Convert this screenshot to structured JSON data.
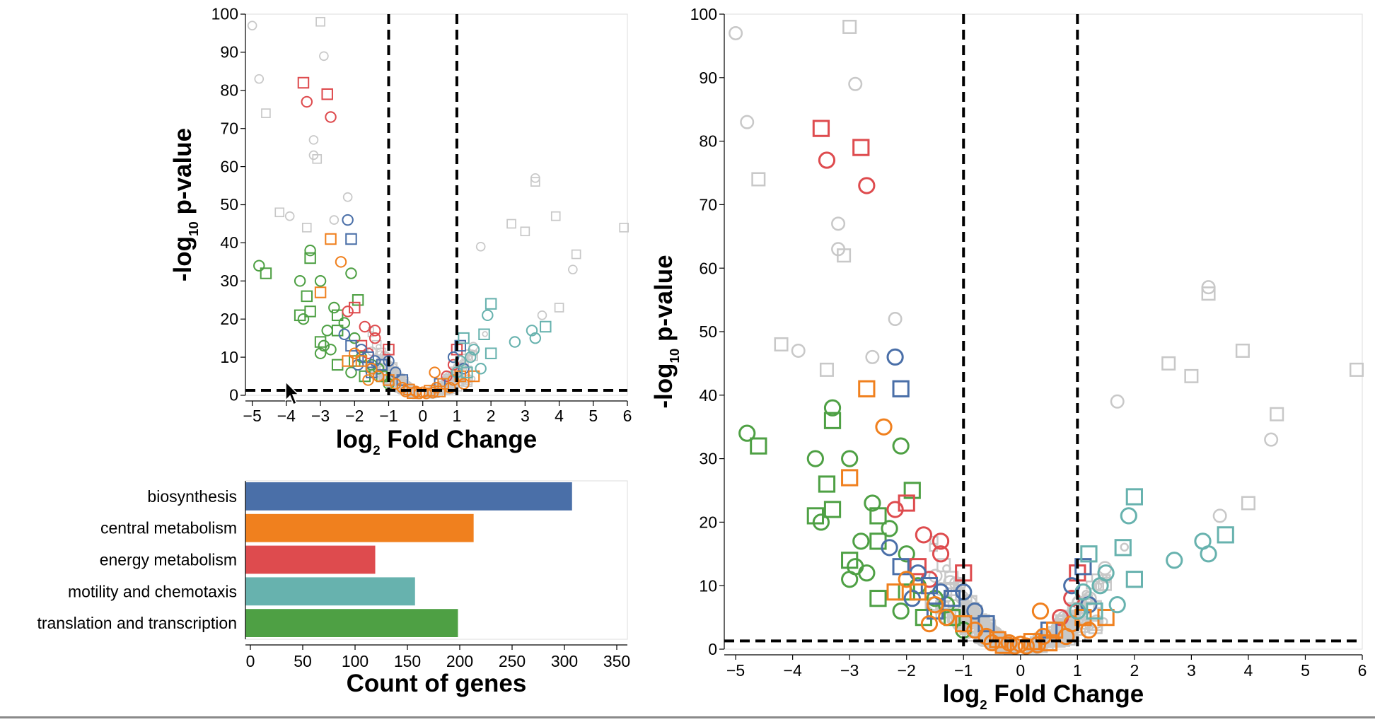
{
  "chart_data": [
    {
      "type": "scatter",
      "subtype": "volcano",
      "title": "",
      "xlabel": {
        "base": "log",
        "sub": "2",
        "rest": " Fold Change"
      },
      "ylabel": {
        "base": "-log",
        "sub": "10",
        "rest": " p-value"
      },
      "xlim": [
        -5.2,
        6
      ],
      "ylim": [
        0,
        100
      ],
      "xticks": [
        -5,
        -4,
        -3,
        -2,
        -1,
        0,
        1,
        2,
        3,
        4,
        5,
        6
      ],
      "xtick_labels": [
        "−5",
        "−4",
        "−3",
        "−2",
        "−1",
        "0",
        "1",
        "2",
        "3",
        "4",
        "5",
        "6"
      ],
      "yticks": [
        0,
        10,
        20,
        30,
        40,
        50,
        60,
        70,
        80,
        90,
        100
      ],
      "grid": false,
      "thresholds": {
        "x": [
          -1,
          1
        ],
        "y": 1.3
      },
      "marker_legend": "circle and square outline markers; color = category, gray = other genes",
      "highlighted_points": [
        {
          "x": -3.5,
          "y": 82,
          "cat": "energy metabolism",
          "shape": "square"
        },
        {
          "x": -3.4,
          "y": 77,
          "cat": "energy metabolism",
          "shape": "circle"
        },
        {
          "x": -2.8,
          "y": 79,
          "cat": "energy metabolism",
          "shape": "square"
        },
        {
          "x": -2.7,
          "y": 73,
          "cat": "energy metabolism",
          "shape": "circle"
        },
        {
          "x": -2.2,
          "y": 46,
          "cat": "biosynthesis",
          "shape": "circle"
        },
        {
          "x": -2.1,
          "y": 41,
          "cat": "biosynthesis",
          "shape": "square"
        },
        {
          "x": -2.7,
          "y": 41,
          "cat": "central metabolism",
          "shape": "square"
        },
        {
          "x": -2.4,
          "y": 35,
          "cat": "central metabolism",
          "shape": "circle"
        },
        {
          "x": -3.0,
          "y": 27,
          "cat": "central metabolism",
          "shape": "square"
        },
        {
          "x": -3.3,
          "y": 38,
          "cat": "translation and transcription",
          "shape": "circle"
        },
        {
          "x": -3.3,
          "y": 36,
          "cat": "translation and transcription",
          "shape": "square"
        },
        {
          "x": -4.8,
          "y": 34,
          "cat": "translation and transcription",
          "shape": "circle"
        },
        {
          "x": -4.6,
          "y": 32,
          "cat": "translation and transcription",
          "shape": "square"
        },
        {
          "x": -3.6,
          "y": 30,
          "cat": "translation and transcription",
          "shape": "circle"
        },
        {
          "x": -3.0,
          "y": 30,
          "cat": "translation and transcription",
          "shape": "circle"
        },
        {
          "x": -2.1,
          "y": 32,
          "cat": "translation and transcription",
          "shape": "circle"
        },
        {
          "x": -3.4,
          "y": 26,
          "cat": "translation and transcription",
          "shape": "square"
        },
        {
          "x": -3.6,
          "y": 21,
          "cat": "translation and transcription",
          "shape": "square"
        },
        {
          "x": -3.5,
          "y": 20,
          "cat": "translation and transcription",
          "shape": "circle"
        },
        {
          "x": -3.3,
          "y": 22,
          "cat": "translation and transcription",
          "shape": "square"
        },
        {
          "x": -2.6,
          "y": 23,
          "cat": "translation and transcription",
          "shape": "circle"
        },
        {
          "x": -2.5,
          "y": 21,
          "cat": "translation and transcription",
          "shape": "square"
        },
        {
          "x": -1.9,
          "y": 25,
          "cat": "translation and transcription",
          "shape": "square"
        },
        {
          "x": -2.3,
          "y": 19,
          "cat": "translation and transcription",
          "shape": "circle"
        },
        {
          "x": -2.8,
          "y": 17,
          "cat": "translation and transcription",
          "shape": "circle"
        },
        {
          "x": -2.5,
          "y": 17,
          "cat": "translation and transcription",
          "shape": "square"
        },
        {
          "x": -3.0,
          "y": 14,
          "cat": "translation and transcription",
          "shape": "square"
        },
        {
          "x": -2.9,
          "y": 13,
          "cat": "translation and transcription",
          "shape": "circle"
        },
        {
          "x": -2.7,
          "y": 12,
          "cat": "translation and transcription",
          "shape": "circle"
        },
        {
          "x": -3.0,
          "y": 11,
          "cat": "translation and transcription",
          "shape": "circle"
        },
        {
          "x": -2.0,
          "y": 15,
          "cat": "translation and transcription",
          "shape": "circle"
        },
        {
          "x": -2.5,
          "y": 8,
          "cat": "translation and transcription",
          "shape": "square"
        },
        {
          "x": -2.0,
          "y": 9,
          "cat": "translation and transcription",
          "shape": "square"
        },
        {
          "x": -1.8,
          "y": 10,
          "cat": "translation and transcription",
          "shape": "circle"
        },
        {
          "x": -1.5,
          "y": 8,
          "cat": "translation and transcription",
          "shape": "circle"
        },
        {
          "x": -1.2,
          "y": 5,
          "cat": "translation and transcription",
          "shape": "square"
        },
        {
          "x": -1.0,
          "y": 3,
          "cat": "translation and transcription",
          "shape": "circle"
        },
        {
          "x": -2.1,
          "y": 6,
          "cat": "translation and transcription",
          "shape": "circle"
        },
        {
          "x": -1.7,
          "y": 5,
          "cat": "translation and transcription",
          "shape": "square"
        },
        {
          "x": -1.3,
          "y": 7,
          "cat": "translation and transcription",
          "shape": "circle"
        },
        {
          "x": -2.0,
          "y": 23,
          "cat": "energy metabolism",
          "shape": "square"
        },
        {
          "x": -2.2,
          "y": 22,
          "cat": "energy metabolism",
          "shape": "circle"
        },
        {
          "x": -1.7,
          "y": 18,
          "cat": "energy metabolism",
          "shape": "circle"
        },
        {
          "x": -1.4,
          "y": 17,
          "cat": "energy metabolism",
          "shape": "circle"
        },
        {
          "x": -1.4,
          "y": 15,
          "cat": "energy metabolism",
          "shape": "circle"
        },
        {
          "x": -1.8,
          "y": 13,
          "cat": "energy metabolism",
          "shape": "square"
        },
        {
          "x": -1.0,
          "y": 12,
          "cat": "energy metabolism",
          "shape": "square"
        },
        {
          "x": -1.6,
          "y": 11,
          "cat": "energy metabolism",
          "shape": "circle"
        },
        {
          "x": 1.0,
          "y": 12,
          "cat": "energy metabolism",
          "shape": "square"
        },
        {
          "x": 0.9,
          "y": 8,
          "cat": "energy metabolism",
          "shape": "circle"
        },
        {
          "x": 0.7,
          "y": 5,
          "cat": "energy metabolism",
          "shape": "circle"
        },
        {
          "x": -2.3,
          "y": 16,
          "cat": "biosynthesis",
          "shape": "circle"
        },
        {
          "x": -2.1,
          "y": 13,
          "cat": "biosynthesis",
          "shape": "square"
        },
        {
          "x": -1.8,
          "y": 12,
          "cat": "biosynthesis",
          "shape": "circle"
        },
        {
          "x": -1.6,
          "y": 10,
          "cat": "biosynthesis",
          "shape": "square"
        },
        {
          "x": -1.4,
          "y": 9,
          "cat": "biosynthesis",
          "shape": "circle"
        },
        {
          "x": -1.2,
          "y": 8,
          "cat": "biosynthesis",
          "shape": "square"
        },
        {
          "x": -1.0,
          "y": 9,
          "cat": "biosynthesis",
          "shape": "circle"
        },
        {
          "x": -0.8,
          "y": 6,
          "cat": "biosynthesis",
          "shape": "circle"
        },
        {
          "x": -0.6,
          "y": 4,
          "cat": "biosynthesis",
          "shape": "square"
        },
        {
          "x": -1.9,
          "y": 8,
          "cat": "biosynthesis",
          "shape": "circle"
        },
        {
          "x": -1.5,
          "y": 6,
          "cat": "biosynthesis",
          "shape": "square"
        },
        {
          "x": 1.1,
          "y": 13,
          "cat": "biosynthesis",
          "shape": "square"
        },
        {
          "x": 0.9,
          "y": 10,
          "cat": "biosynthesis",
          "shape": "circle"
        },
        {
          "x": 1.2,
          "y": 7,
          "cat": "biosynthesis",
          "shape": "circle"
        },
        {
          "x": 0.5,
          "y": 3,
          "cat": "biosynthesis",
          "shape": "square"
        },
        {
          "x": -2.0,
          "y": 11,
          "cat": "central metabolism",
          "shape": "circle"
        },
        {
          "x": -1.8,
          "y": 9,
          "cat": "central metabolism",
          "shape": "square"
        },
        {
          "x": -1.5,
          "y": 7,
          "cat": "central metabolism",
          "shape": "circle"
        },
        {
          "x": -1.3,
          "y": 5,
          "cat": "central metabolism",
          "shape": "circle"
        },
        {
          "x": -1.0,
          "y": 4,
          "cat": "central metabolism",
          "shape": "square"
        },
        {
          "x": -0.8,
          "y": 3,
          "cat": "central metabolism",
          "shape": "circle"
        },
        {
          "x": -0.6,
          "y": 2,
          "cat": "central metabolism",
          "shape": "circle"
        },
        {
          "x": -0.4,
          "y": 1.5,
          "cat": "central metabolism",
          "shape": "square"
        },
        {
          "x": -0.2,
          "y": 1,
          "cat": "central metabolism",
          "shape": "circle"
        },
        {
          "x": 0.0,
          "y": 0.8,
          "cat": "central metabolism",
          "shape": "circle"
        },
        {
          "x": 0.2,
          "y": 1.2,
          "cat": "central metabolism",
          "shape": "square"
        },
        {
          "x": 0.4,
          "y": 2,
          "cat": "central metabolism",
          "shape": "circle"
        },
        {
          "x": 0.35,
          "y": 6,
          "cat": "central metabolism",
          "shape": "circle"
        },
        {
          "x": 0.6,
          "y": 3,
          "cat": "central metabolism",
          "shape": "square"
        },
        {
          "x": 0.8,
          "y": 2,
          "cat": "central metabolism",
          "shape": "circle"
        },
        {
          "x": 0.9,
          "y": 4,
          "cat": "central metabolism",
          "shape": "circle"
        },
        {
          "x": 1.1,
          "y": 5,
          "cat": "central metabolism",
          "shape": "square"
        },
        {
          "x": 1.2,
          "y": 3,
          "cat": "central metabolism",
          "shape": "circle"
        },
        {
          "x": 1.5,
          "y": 5,
          "cat": "central metabolism",
          "shape": "square"
        },
        {
          "x": -0.1,
          "y": 0.5,
          "cat": "central metabolism",
          "shape": "circle"
        },
        {
          "x": 0.1,
          "y": 0.5,
          "cat": "central metabolism",
          "shape": "circle"
        },
        {
          "x": -0.3,
          "y": 0.6,
          "cat": "central metabolism",
          "shape": "square"
        },
        {
          "x": 0.3,
          "y": 0.7,
          "cat": "central metabolism",
          "shape": "circle"
        },
        {
          "x": -0.5,
          "y": 1,
          "cat": "central metabolism",
          "shape": "circle"
        },
        {
          "x": 0.5,
          "y": 1,
          "cat": "central metabolism",
          "shape": "square"
        },
        {
          "x": -2.2,
          "y": 9,
          "cat": "central metabolism",
          "shape": "square"
        },
        {
          "x": -1.6,
          "y": 4,
          "cat": "central metabolism",
          "shape": "circle"
        },
        {
          "x": 2.0,
          "y": 24,
          "cat": "motility and chemotaxis",
          "shape": "square"
        },
        {
          "x": 1.9,
          "y": 21,
          "cat": "motility and chemotaxis",
          "shape": "circle"
        },
        {
          "x": 3.2,
          "y": 17,
          "cat": "motility and chemotaxis",
          "shape": "circle"
        },
        {
          "x": 3.3,
          "y": 15,
          "cat": "motility and chemotaxis",
          "shape": "circle"
        },
        {
          "x": 3.6,
          "y": 18,
          "cat": "motility and chemotaxis",
          "shape": "square"
        },
        {
          "x": 2.7,
          "y": 14,
          "cat": "motility and chemotaxis",
          "shape": "circle"
        },
        {
          "x": 1.8,
          "y": 16,
          "cat": "motility and chemotaxis",
          "shape": "square"
        },
        {
          "x": 2.0,
          "y": 11,
          "cat": "motility and chemotaxis",
          "shape": "square"
        },
        {
          "x": 1.5,
          "y": 12,
          "cat": "motility and chemotaxis",
          "shape": "circle"
        },
        {
          "x": 1.2,
          "y": 15,
          "cat": "motility and chemotaxis",
          "shape": "square"
        },
        {
          "x": 1.4,
          "y": 10,
          "cat": "motility and chemotaxis",
          "shape": "circle"
        },
        {
          "x": 1.1,
          "y": 9,
          "cat": "motility and chemotaxis",
          "shape": "circle"
        },
        {
          "x": 1.7,
          "y": 7,
          "cat": "motility and chemotaxis",
          "shape": "circle"
        },
        {
          "x": 1.3,
          "y": 6,
          "cat": "motility and chemotaxis",
          "shape": "square"
        },
        {
          "x": 1.0,
          "y": 6,
          "cat": "motility and chemotaxis",
          "shape": "circle"
        }
      ]
    },
    {
      "type": "bar",
      "orientation": "horizontal",
      "title": "",
      "categories": [
        "biosynthesis",
        "central metabolism",
        "energy metabolism",
        "motility and chemotaxis",
        "translation and transcription"
      ],
      "values": [
        312,
        218,
        124,
        162,
        203
      ],
      "xlabel": "Count of genes",
      "ylabel": "",
      "xlim": [
        0,
        350
      ],
      "xticks": [
        0,
        50,
        100,
        150,
        200,
        250,
        300,
        350
      ],
      "grid": false
    }
  ],
  "colors": {
    "biosynthesis": "#4a6fa8",
    "central metabolism": "#f0801e",
    "energy metabolism": "#de4b4e",
    "motility and chemotaxis": "#67b2ae",
    "translation and transcription": "#4ea044",
    "other": "#c8c8c8",
    "threshold": "#000000"
  },
  "icons": {
    "cursor": "arrow-cursor-icon"
  }
}
